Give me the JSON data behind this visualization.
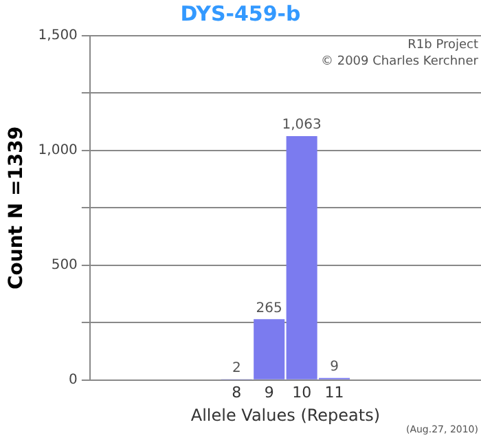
{
  "chart_data": {
    "type": "bar",
    "title": "DYS-459-b",
    "xlabel": "Allele Values (Repeats)",
    "ylabel": "Count N =1339",
    "categories": [
      null,
      null,
      null,
      null,
      "8",
      "9",
      "10",
      "11",
      null,
      null,
      null,
      null
    ],
    "values": [
      null,
      null,
      null,
      null,
      2,
      265,
      1063,
      9,
      null,
      null,
      null,
      null
    ],
    "color": "#7b7bef",
    "ylim": [
      0,
      1500
    ],
    "yticks": [
      0,
      {
        "value": 250,
        "label": null
      },
      500,
      {
        "value": 750,
        "label": null
      },
      {
        "value": 1000,
        "label": "1,000"
      },
      {
        "value": 1250,
        "label": null
      },
      {
        "value": 1500,
        "label": "1,500"
      }
    ],
    "value_labels": [
      null,
      null,
      null,
      null,
      "2",
      "265",
      "1,063",
      "9",
      null,
      null,
      null,
      null
    ],
    "grid": "y",
    "legend": false,
    "annotations": [
      "R1b Project",
      "© 2009 Charles Kerchner",
      "(Aug.27, 2010)"
    ]
  }
}
